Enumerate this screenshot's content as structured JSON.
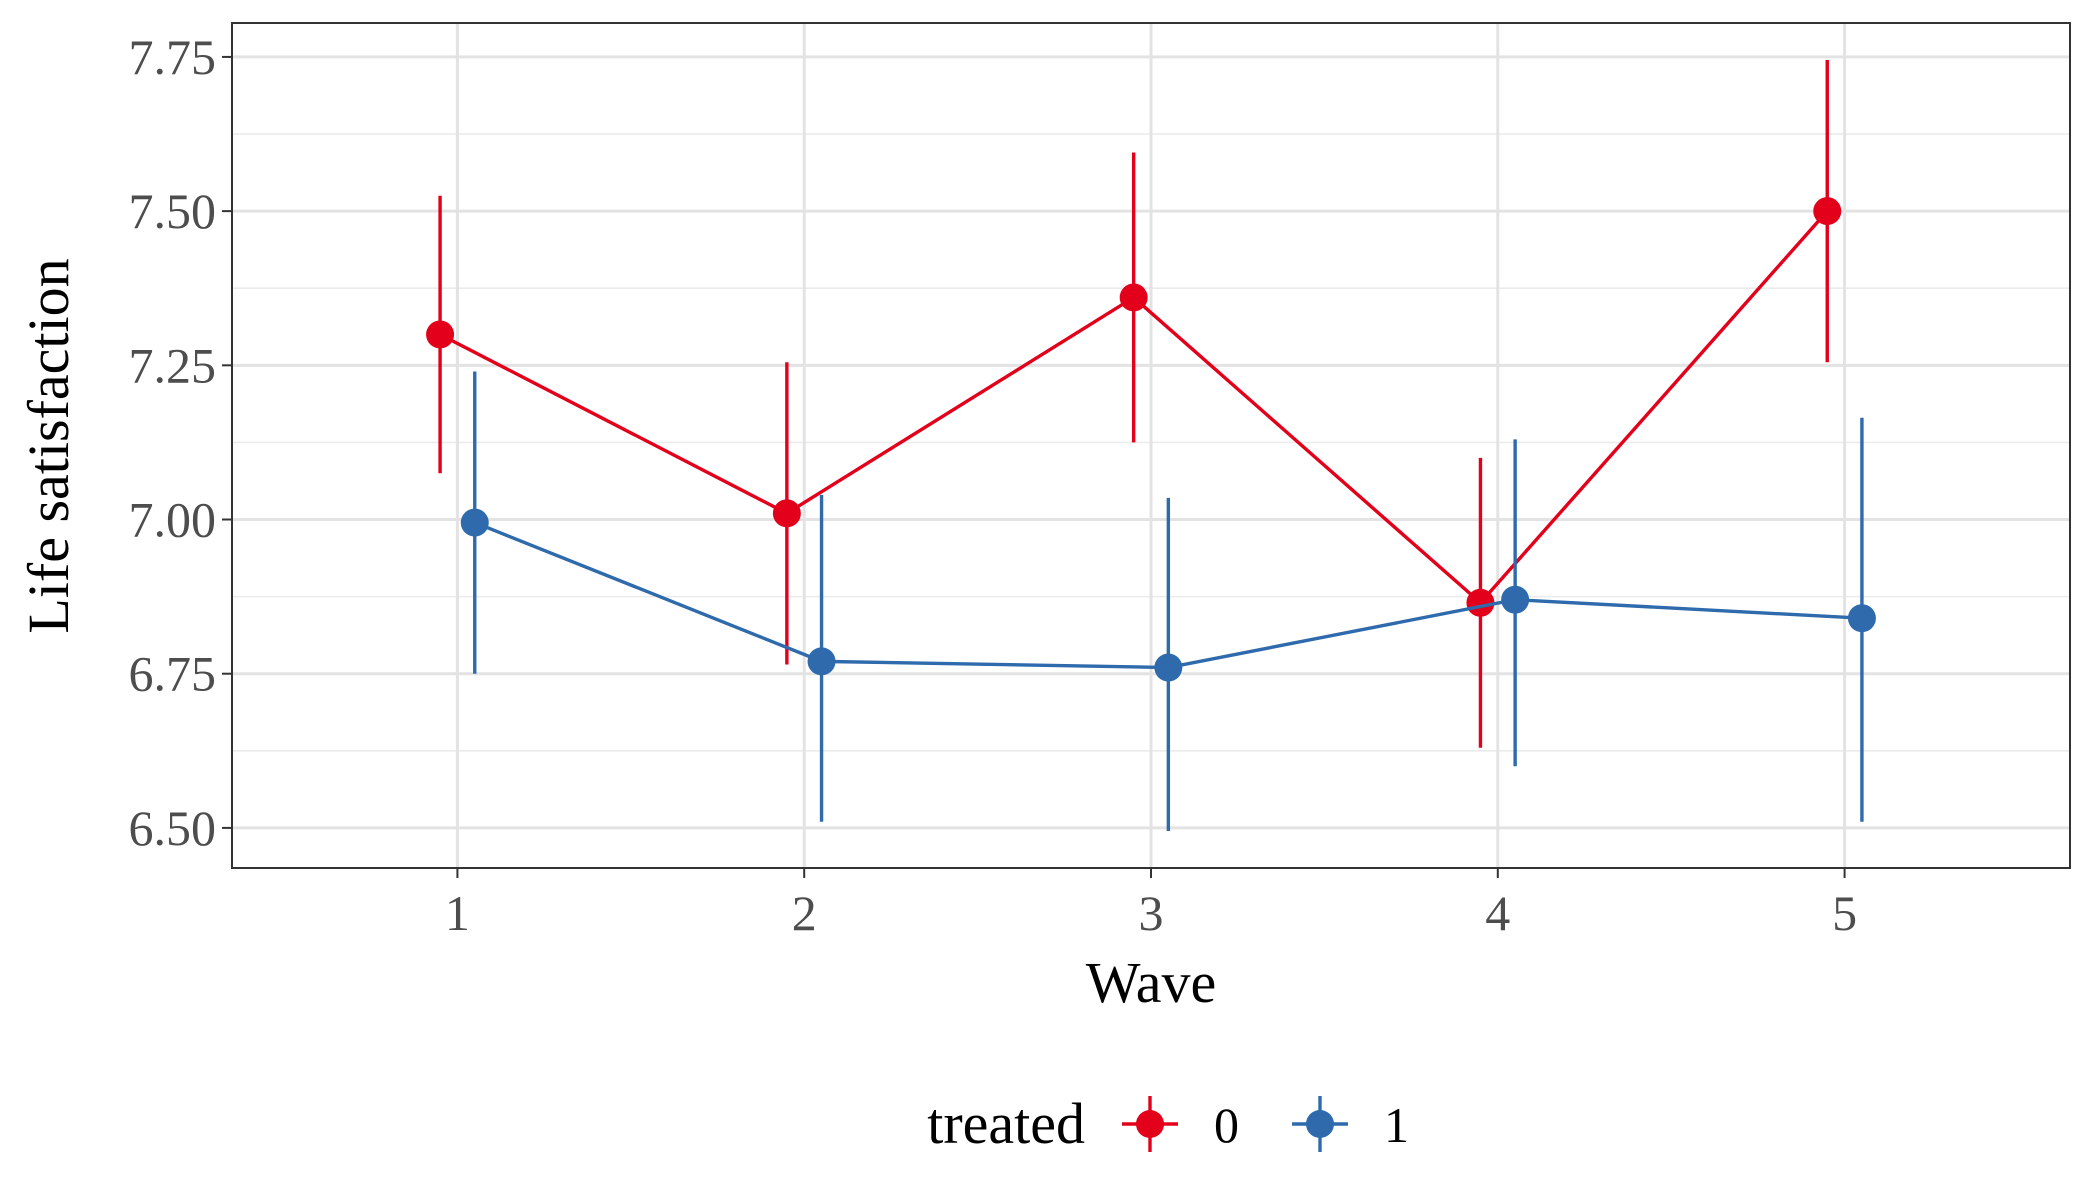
{
  "chart_data": {
    "type": "line",
    "xlabel": "Wave",
    "ylabel": "Life satisfaction",
    "x": [
      1,
      2,
      3,
      4,
      5
    ],
    "xlim": [
      0.35,
      5.65
    ],
    "ylim": [
      6.435,
      7.805
    ],
    "y_ticks": [
      6.5,
      6.75,
      7.0,
      7.25,
      7.5,
      7.75
    ],
    "y_tick_labels": [
      "6.50",
      "6.75",
      "7.00",
      "7.25",
      "7.50",
      "7.75"
    ],
    "y_minor_ticks": [
      6.625,
      6.875,
      7.125,
      7.375,
      7.625
    ],
    "x_tick_labels": [
      "1",
      "2",
      "3",
      "4",
      "5"
    ],
    "dodge": 0.05,
    "grid": true,
    "legend": {
      "title": "treated",
      "position": "bottom"
    },
    "series": [
      {
        "name": "0",
        "color": "#e3001b",
        "values": [
          7.3,
          7.01,
          7.36,
          6.865,
          7.5
        ],
        "lower": [
          7.075,
          6.765,
          7.125,
          6.63,
          7.255
        ],
        "upper": [
          7.525,
          7.255,
          7.595,
          7.1,
          7.745
        ]
      },
      {
        "name": "1",
        "color": "#2e6aac",
        "values": [
          6.995,
          6.77,
          6.76,
          6.87,
          6.84
        ],
        "lower": [
          6.75,
          6.51,
          6.495,
          6.6,
          6.51
        ],
        "upper": [
          7.24,
          7.04,
          7.035,
          7.13,
          7.165
        ]
      }
    ]
  }
}
